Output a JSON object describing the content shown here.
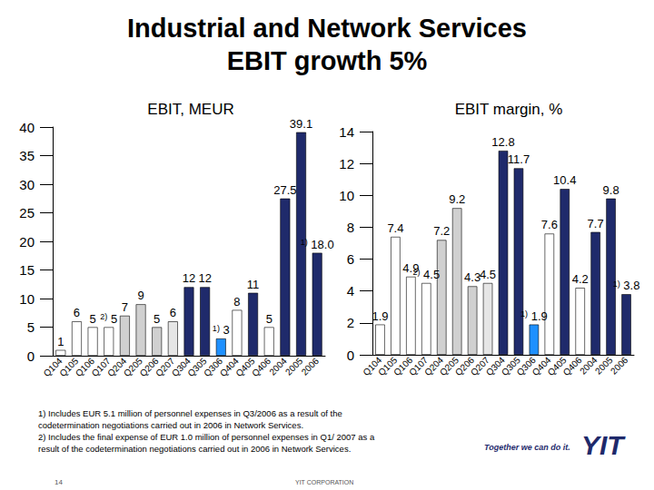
{
  "page": {
    "title_lines": [
      "Industrial and Network Services",
      "EBIT growth 5%"
    ],
    "footnotes": [
      "1) Includes EUR 5.1 million of personnel expenses in Q3/2006 as a result of the",
      "codetermination negotiations carried out in 2006 in Network Services.",
      "2) Includes the final expense of EUR 1.0 million of personnel expenses in Q1/ 2007 as a",
      "result of the codetermination negotiations carried out in 2006 in Network Services."
    ],
    "page_number": "14",
    "footer": "YIT CORPORATION",
    "slogan": "Together we can do it.",
    "logo": "YIT"
  },
  "chart_data": [
    {
      "type": "bar",
      "title": "EBIT, MEUR",
      "categories": [
        "Q104",
        "Q105",
        "Q106",
        "Q107",
        "Q204",
        "Q205",
        "Q206",
        "Q207",
        "Q304",
        "Q305",
        "Q306",
        "Q404",
        "Q405",
        "Q406",
        "2004",
        "2005",
        "2006"
      ],
      "values": [
        1,
        6,
        5,
        5,
        7,
        9,
        5,
        6,
        12,
        12,
        3,
        8,
        11,
        5,
        27.5,
        39.1,
        18.0
      ],
      "value_labels": [
        "1",
        "6",
        "5",
        "5",
        "7",
        "9",
        "5",
        "6",
        "12",
        "12",
        "3",
        "8",
        "11",
        "5",
        "27.5",
        "39.1",
        "18.0"
      ],
      "colors": [
        "#ffffff",
        "#ffffff",
        "#ffffff",
        "#ffffff",
        "#d0d0d0",
        "#d0d0d0",
        "#d0d0d0",
        "#e6e6e6",
        "#1f2a6b",
        "#1f2a6b",
        "#1e90ff",
        "#ffffff",
        "#1f2a6b",
        "#ffffff",
        "#1f2a6b",
        "#1f2a6b",
        "#1f2a6b"
      ],
      "annotations": [
        {
          "category": "Q107",
          "text": "2)"
        },
        {
          "category": "Q306",
          "text": "1)"
        },
        {
          "category": "2006",
          "text": "1)"
        }
      ],
      "ylim": [
        0,
        40
      ],
      "yticks": [
        0,
        5,
        10,
        15,
        20,
        25,
        30,
        35,
        40
      ],
      "grid": false,
      "data_labels": true
    },
    {
      "type": "bar",
      "title": "EBIT margin, %",
      "categories": [
        "Q104",
        "Q105",
        "Q106",
        "Q107",
        "Q204",
        "Q205",
        "Q206",
        "Q207",
        "Q304",
        "Q305",
        "Q306",
        "Q404",
        "Q405",
        "Q406",
        "2004",
        "2005",
        "2006"
      ],
      "values": [
        1.9,
        7.4,
        4.9,
        4.5,
        7.2,
        9.2,
        4.3,
        4.5,
        12.8,
        11.7,
        1.9,
        7.6,
        10.4,
        4.2,
        7.7,
        9.8,
        3.8
      ],
      "colors": [
        "#ffffff",
        "#ffffff",
        "#ffffff",
        "#ffffff",
        "#d0d0d0",
        "#d0d0d0",
        "#d0d0d0",
        "#e6e6e6",
        "#1f2a6b",
        "#1f2a6b",
        "#1e90ff",
        "#ffffff",
        "#1f2a6b",
        "#ffffff",
        "#1f2a6b",
        "#1f2a6b",
        "#1f2a6b"
      ],
      "annotations": [
        {
          "category": "Q107",
          "text": "2)"
        },
        {
          "category": "Q306",
          "text": "1)"
        },
        {
          "category": "2006",
          "text": "1)"
        }
      ],
      "ylim": [
        0,
        14
      ],
      "yticks": [
        0,
        2,
        4,
        6,
        8,
        10,
        12,
        14
      ],
      "grid": false,
      "data_labels": true
    }
  ]
}
